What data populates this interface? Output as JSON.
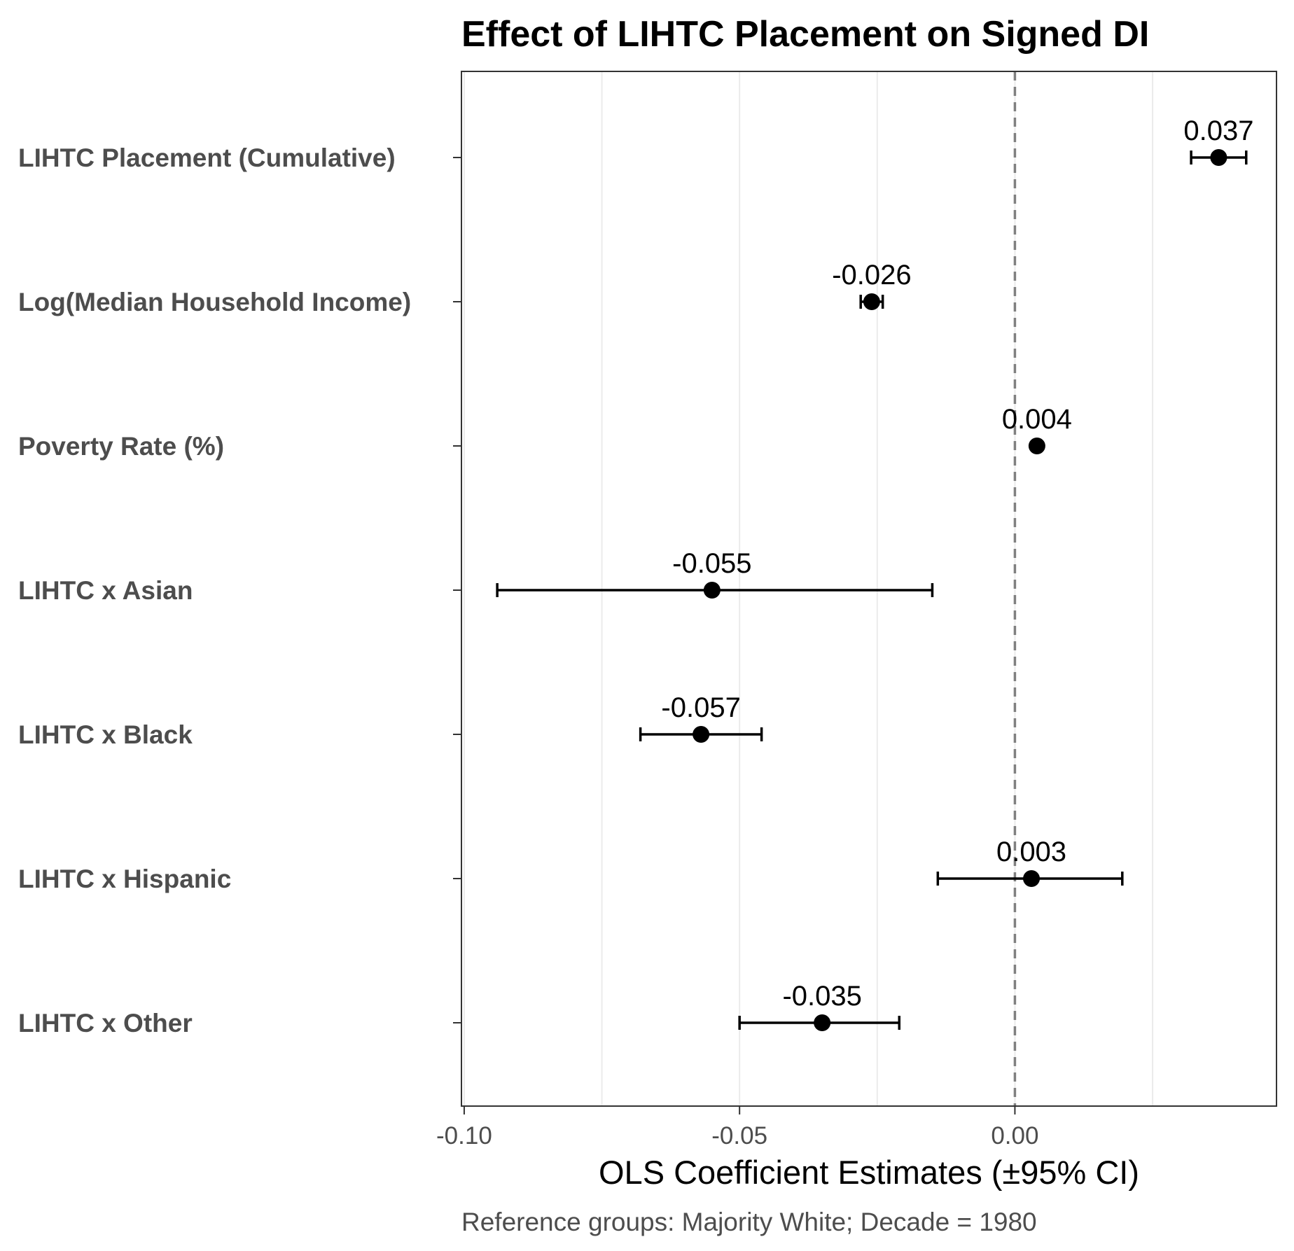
{
  "chart_data": {
    "type": "scatter",
    "subtype": "coefficient-plot",
    "title": "Effect of LIHTC Placement on Signed DI",
    "xlabel": "OLS Coefficient Estimates (±95% CI)",
    "ylabel": "",
    "caption": "Reference groups: Majority White; Decade = 1980",
    "xlim": [
      -0.1005,
      0.0475
    ],
    "x_ticks": [
      -0.1,
      -0.05,
      0.0
    ],
    "x_tick_labels": [
      "-0.10",
      "-0.05",
      "0.00"
    ],
    "minor_x_gridlines": [
      -0.075,
      -0.025,
      0.025
    ],
    "reference_line": 0,
    "grid": true,
    "categories": [
      "LIHTC Placement (Cumulative)",
      "Log(Median Household Income)",
      "Poverty Rate (%)",
      "LIHTC x Asian",
      "LIHTC x Black",
      "LIHTC x Hispanic",
      "LIHTC x Other"
    ],
    "series": [
      {
        "estimates": [
          0.037,
          -0.026,
          0.004,
          -0.055,
          -0.057,
          0.003,
          -0.035
        ],
        "ci_low": [
          0.032,
          -0.028,
          0.0035,
          -0.094,
          -0.068,
          -0.014,
          -0.05
        ],
        "ci_high": [
          0.042,
          -0.024,
          0.0045,
          -0.015,
          -0.046,
          0.0195,
          -0.021
        ],
        "labels": [
          "0.037",
          "-0.026",
          "0.004",
          "-0.055",
          "-0.057",
          "0.003",
          "-0.035"
        ]
      }
    ]
  },
  "colors": {
    "point": "#000000",
    "errorbar": "#000000",
    "reference_line": "#808080",
    "gridline": "#ebebeb",
    "panel_border": "#333333",
    "tick_text": "#4d4d4d"
  }
}
